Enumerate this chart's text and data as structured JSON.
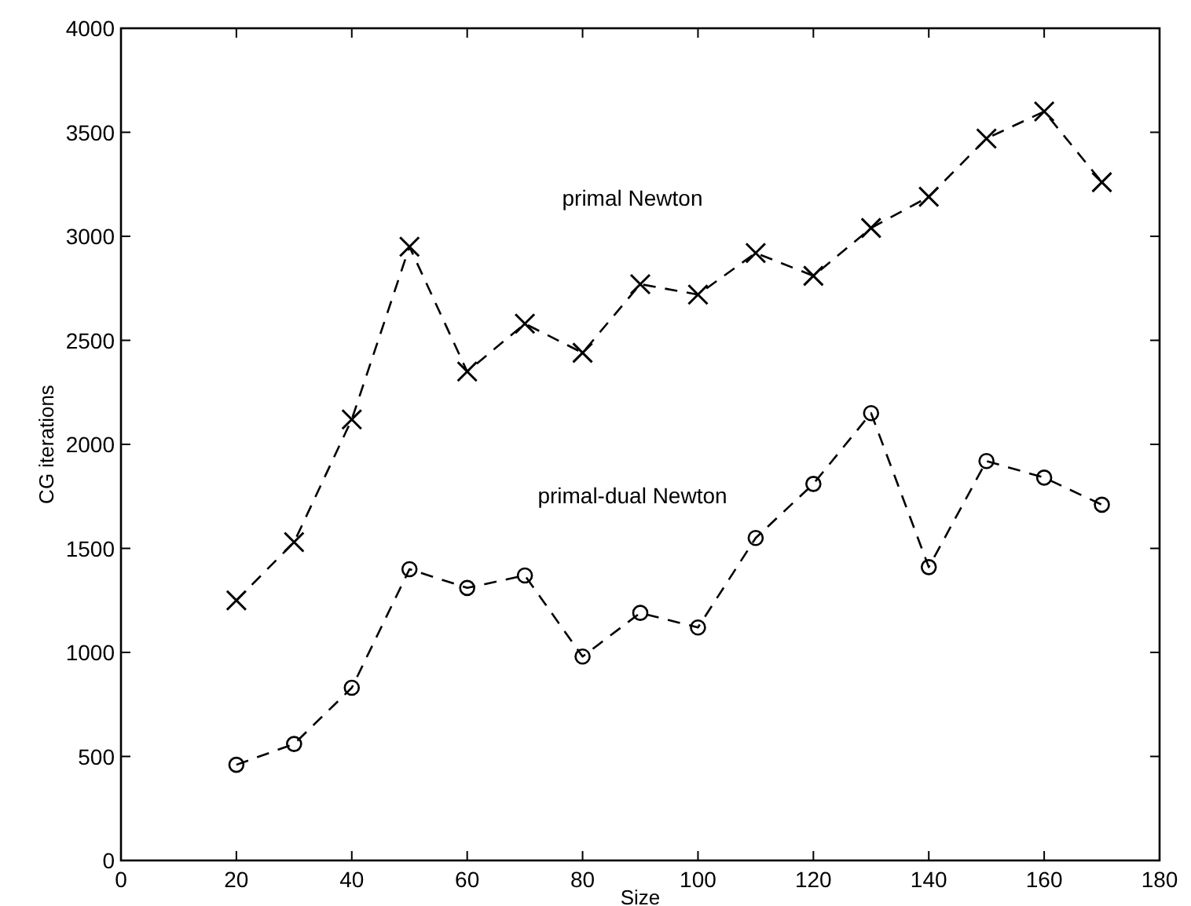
{
  "chart_data": {
    "type": "line",
    "xlabel": "Size",
    "ylabel": "CG iterations",
    "x": [
      20,
      30,
      40,
      50,
      60,
      70,
      80,
      90,
      100,
      110,
      120,
      130,
      140,
      150,
      160,
      170
    ],
    "series": [
      {
        "name": "primal Newton",
        "color": "#000000",
        "marker": "cross",
        "line_style": "dashed",
        "values": [
          1250,
          1530,
          2120,
          2950,
          2350,
          2580,
          2440,
          2770,
          2720,
          2920,
          2810,
          3040,
          3190,
          3470,
          3600,
          3260
        ]
      },
      {
        "name": "primal-dual Newton",
        "color": "#000000",
        "marker": "circle",
        "line_style": "dashed",
        "values": [
          460,
          560,
          830,
          1400,
          1310,
          1370,
          980,
          1190,
          1120,
          1550,
          1810,
          2150,
          1410,
          1920,
          1840,
          1710
        ]
      }
    ],
    "xlim": [
      0,
      180
    ],
    "xticks": [
      0,
      20,
      40,
      60,
      80,
      100,
      120,
      140,
      160,
      180
    ],
    "ylim": [
      0,
      4000
    ],
    "yticks": [
      0,
      500,
      1000,
      1500,
      2000,
      2500,
      3000,
      3500,
      4000
    ],
    "grid": false
  }
}
